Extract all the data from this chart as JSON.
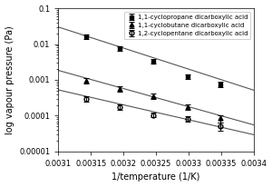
{
  "series": [
    {
      "label": "1,1-cyclopropane dicarboxylic acid",
      "marker": "s",
      "color": "#000000",
      "fillstyle": "full",
      "x": [
        0.003143,
        0.003194,
        0.003246,
        0.003299,
        0.003349
      ],
      "y": [
        0.016,
        0.0075,
        0.0033,
        0.00125,
        0.00075
      ],
      "yerr": [
        0.0025,
        0.0012,
        0.0005,
        0.00018,
        0.00012
      ],
      "fit_x": [
        0.003095,
        0.003405
      ],
      "fit_y": [
        0.032,
        0.00048
      ]
    },
    {
      "label": "1,1-cyclobutane dicarboxylic acid",
      "marker": "^",
      "color": "#000000",
      "fillstyle": "full",
      "x": [
        0.003143,
        0.003194,
        0.003246,
        0.003299,
        0.003349
      ],
      "y": [
        0.00095,
        0.00057,
        0.00035,
        0.000175,
        8.5e-05
      ],
      "yerr": [
        0.00016,
        9e-05,
        6e-05,
        2.8e-05,
        2e-05
      ],
      "fit_x": [
        0.003095,
        0.003405
      ],
      "fit_y": [
        0.00195,
        5.2e-05
      ]
    },
    {
      "label": "1,2-cyclopentane dicarboxylic acid",
      "marker": "o",
      "color": "#000000",
      "fillstyle": "none",
      "x": [
        0.003143,
        0.003194,
        0.003246,
        0.003299,
        0.003349
      ],
      "y": [
        0.0003,
        0.000175,
        0.000105,
        8.2e-05,
        5.2e-05
      ],
      "yerr": [
        4.8e-05,
        2.8e-05,
        1.6e-05,
        1.3e-05,
        1.3e-05
      ],
      "fit_x": [
        0.003095,
        0.003405
      ],
      "fit_y": [
        0.00055,
        2.8e-05
      ]
    }
  ],
  "xlabel": "1/temperature (1/K)",
  "ylabel": "log vapour pressure (Pa)",
  "xlim": [
    0.0031,
    0.0034
  ],
  "ylim": [
    1e-05,
    0.1
  ],
  "xticks": [
    0.0031,
    0.00315,
    0.0032,
    0.00325,
    0.0033,
    0.00335,
    0.0034
  ],
  "xtick_labels": [
    "0.0031",
    "0.00315",
    "0.0032",
    "0.00325",
    "0.0033",
    "0.00335",
    "0.0034"
  ],
  "yticks": [
    1e-05,
    0.0001,
    0.001,
    0.01,
    0.1
  ],
  "ytick_labels": [
    "0.00001",
    "0.0001",
    "0.001",
    "0.01",
    "0.1"
  ],
  "background_color": "#ffffff",
  "line_color": "#555555",
  "legend_fontsize": 5.0,
  "axis_fontsize": 7,
  "tick_fontsize": 6
}
